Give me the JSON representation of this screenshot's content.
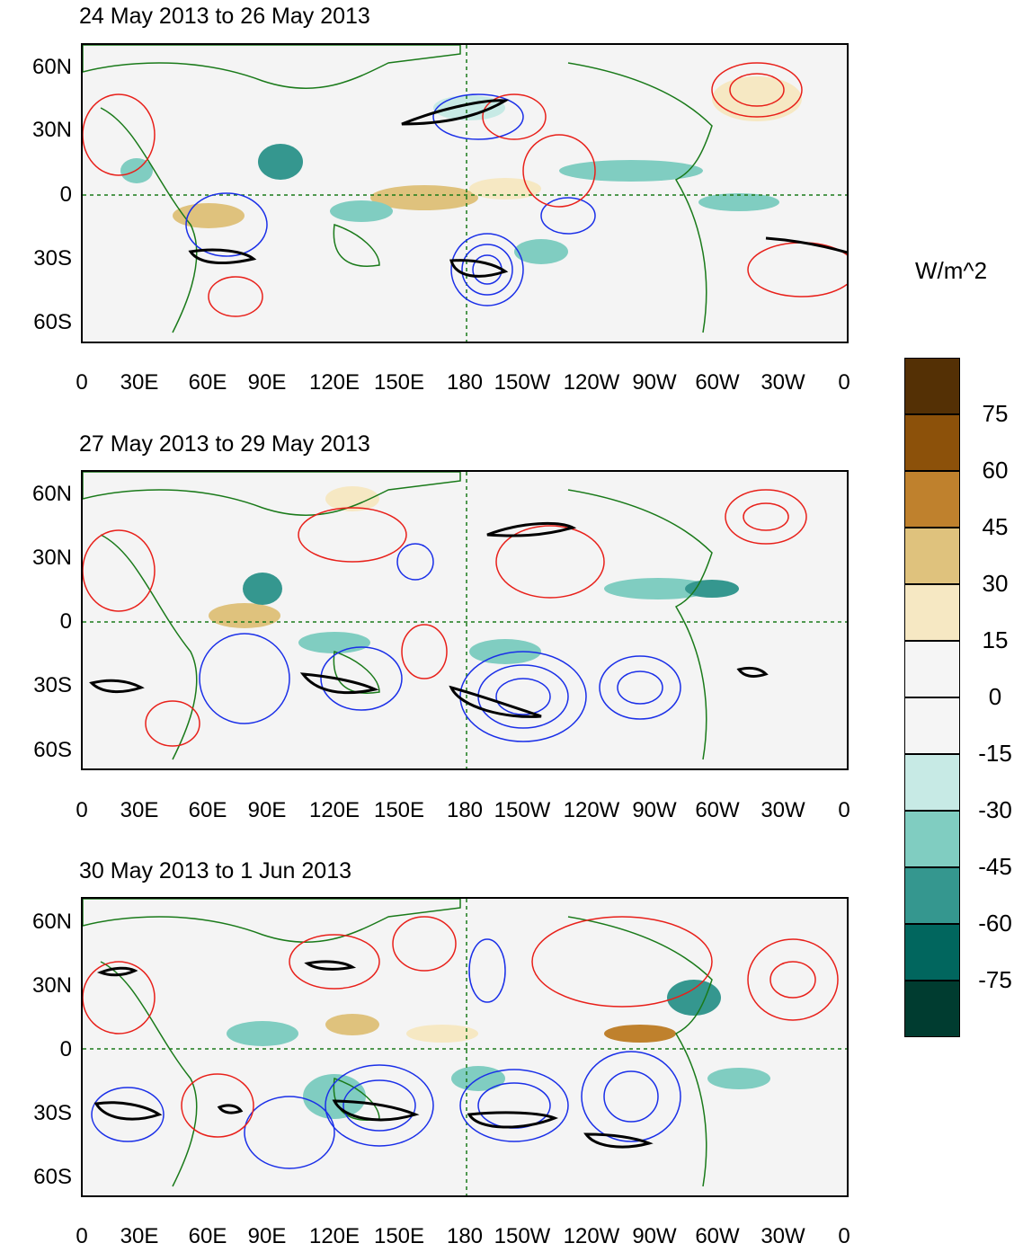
{
  "panels": [
    {
      "title": "24 May 2013 to 26 May 2013"
    },
    {
      "title": "27 May 2013 to 29 May 2013"
    },
    {
      "title": "30 May 2013 to 1 Jun 2013"
    }
  ],
  "lat_labels": [
    "60N",
    "30N",
    "0",
    "30S",
    "60S"
  ],
  "lon_labels": [
    "0",
    "30E",
    "60E",
    "90E",
    "120E",
    "150E",
    "180",
    "150W",
    "120W",
    "90W",
    "60W",
    "30W",
    "0"
  ],
  "colorbar": {
    "unit": "W/m^2",
    "labels": [
      "75",
      "60",
      "45",
      "30",
      "15",
      "0",
      "-15",
      "-30",
      "-45",
      "-60",
      "-75"
    ],
    "colors": [
      "#543005",
      "#8c510a",
      "#bf812d",
      "#dfc27d",
      "#f6e8c3",
      "#f5f5f5",
      "#f5f5f5",
      "#c7eae5",
      "#80cdc1",
      "#35978f",
      "#01665e",
      "#003c30"
    ]
  },
  "colors": {
    "land_outline": "#1a7a1a",
    "positive_contour": "#e8201a",
    "negative_contour": "#1a2fe8",
    "jet_contour": "#000000"
  }
}
